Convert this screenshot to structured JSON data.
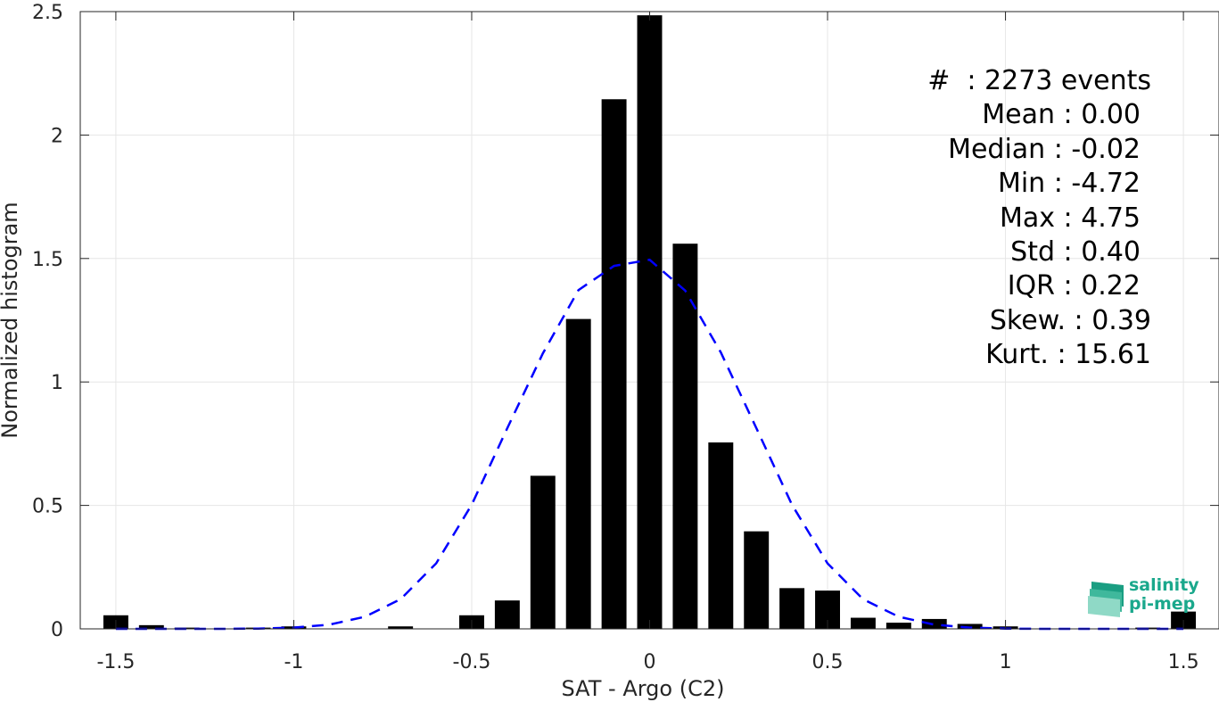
{
  "chart_data": {
    "type": "bar",
    "xlabel": "SAT - Argo (C2)",
    "ylabel": "Normalized histogram",
    "xlim": [
      -1.6,
      1.6
    ],
    "ylim": [
      0,
      2.5
    ],
    "xticks": [
      -1.5,
      -1,
      -0.5,
      0,
      0.5,
      1,
      1.5
    ],
    "xtick_labels": [
      "-1.5",
      "-1",
      "-0.5",
      "0",
      "0.5",
      "1",
      "1.5"
    ],
    "yticks": [
      0,
      0.5,
      1,
      1.5,
      2,
      2.5
    ],
    "ytick_labels": [
      "0",
      "0.5",
      "1",
      "1.5",
      "2",
      "2.5"
    ],
    "grid": true,
    "bar_color": "#000000",
    "bar_width": 0.07,
    "x": [
      -1.5,
      -1.4,
      -1.3,
      -1.2,
      -1.1,
      -1.0,
      -0.9,
      -0.8,
      -0.7,
      -0.6,
      -0.5,
      -0.4,
      -0.3,
      -0.2,
      -0.1,
      0.0,
      0.1,
      0.2,
      0.3,
      0.4,
      0.5,
      0.6,
      0.7,
      0.8,
      0.9,
      1.0,
      1.1,
      1.2,
      1.3,
      1.4,
      1.5
    ],
    "values": [
      0.055,
      0.015,
      0.005,
      0.0,
      0.005,
      0.01,
      0.0,
      0.0,
      0.01,
      0.0,
      0.055,
      0.115,
      0.62,
      1.255,
      2.145,
      2.485,
      1.56,
      0.755,
      0.395,
      0.165,
      0.155,
      0.045,
      0.025,
      0.04,
      0.02,
      0.01,
      0.0,
      0.0,
      0.0,
      0.005,
      0.07
    ],
    "fit_curve": {
      "type": "line",
      "style": "dashed",
      "color": "#0000ff",
      "x": [
        -1.5,
        -1.4,
        -1.3,
        -1.2,
        -1.1,
        -1.0,
        -0.9,
        -0.8,
        -0.7,
        -0.6,
        -0.5,
        -0.4,
        -0.3,
        -0.2,
        -0.1,
        0.0,
        0.1,
        0.2,
        0.3,
        0.4,
        0.5,
        0.6,
        0.7,
        0.8,
        0.9,
        1.0,
        1.1,
        1.2,
        1.3,
        1.4,
        1.5
      ],
      "y": [
        0.0,
        0.0,
        0.0,
        0.0,
        0.001,
        0.005,
        0.017,
        0.049,
        0.12,
        0.265,
        0.503,
        0.813,
        1.116,
        1.372,
        1.47,
        1.495,
        1.37,
        1.12,
        0.813,
        0.503,
        0.265,
        0.12,
        0.049,
        0.017,
        0.005,
        0.001,
        0.0,
        0.0,
        0.0,
        0.0,
        0.0
      ]
    },
    "stats_placement": "top-right"
  },
  "stats": [
    "#  : 2273 events",
    "Mean : 0.00",
    "Median : -0.02",
    "Min : -4.72",
    "Max : 4.75",
    "Std : 0.40",
    "IQR : 0.22",
    "Skew. : 0.39",
    "Kurt. : 15.61"
  ],
  "logo": {
    "line1": "salinity",
    "line2": "pi-mep",
    "color": "#1aa88c"
  }
}
